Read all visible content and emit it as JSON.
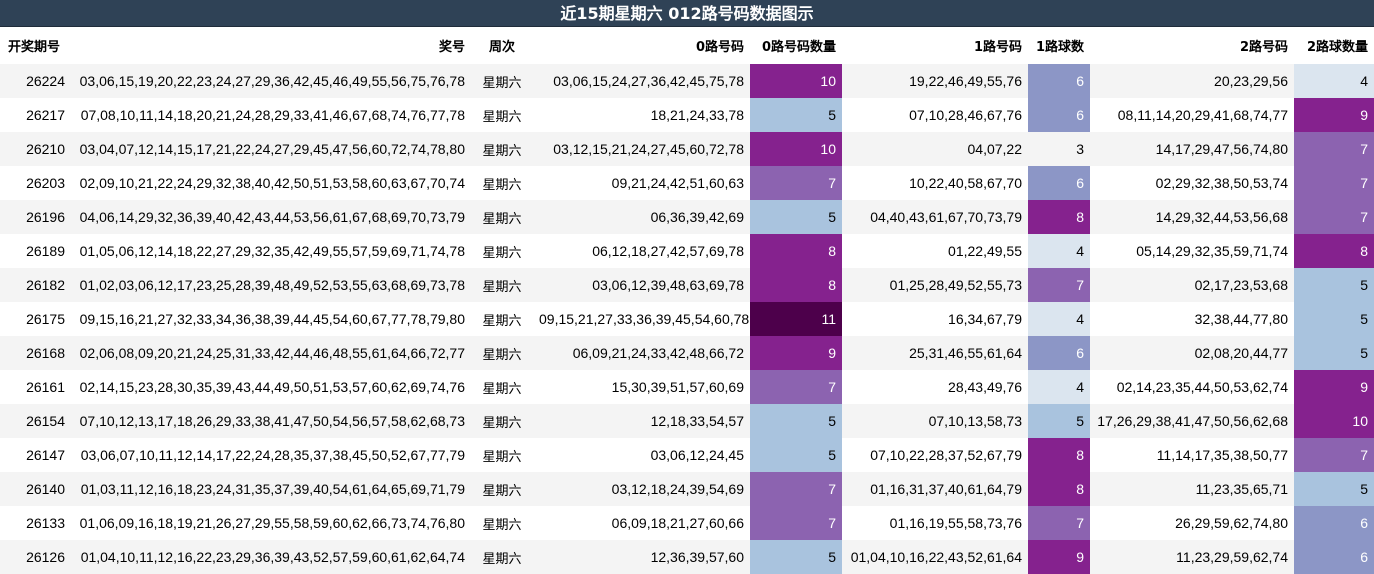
{
  "title": "近15期星期六 012路号码数据图示",
  "headers": [
    "开奖期号",
    "奖号",
    "周次",
    "0路号码",
    "0路号码数量",
    "1路号码",
    "1路球数",
    "2路号码",
    "2路球数量"
  ],
  "palette": {
    "4": {
      "bg": "#dbe5ef",
      "fg": "#000000"
    },
    "5": {
      "bg": "#a9c3de",
      "fg": "#000000"
    },
    "6": {
      "bg": "#8c96c6",
      "fg": "#ffffff"
    },
    "7": {
      "bg": "#8c63b0",
      "fg": "#ffffff"
    },
    "8": {
      "bg": "#85228e",
      "fg": "#ffffff"
    },
    "9": {
      "bg": "#85228e",
      "fg": "#ffffff"
    },
    "10": {
      "bg": "#85228e",
      "fg": "#ffffff"
    },
    "11": {
      "bg": "#4d004b",
      "fg": "#ffffff"
    }
  },
  "rows": [
    {
      "issue": "26224",
      "numbers": "03,06,15,19,20,22,23,24,27,29,36,42,45,46,49,55,56,75,76,78",
      "weekday": "星期六",
      "r0": "03,06,15,24,27,36,42,45,75,78",
      "r0n": "10",
      "r1": "19,22,46,49,55,76",
      "r1n": "6",
      "r2": "20,23,29,56",
      "r2n": "4"
    },
    {
      "issue": "26217",
      "numbers": "07,08,10,11,14,18,20,21,24,28,29,33,41,46,67,68,74,76,77,78",
      "weekday": "星期六",
      "r0": "18,21,24,33,78",
      "r0n": "5",
      "r1": "07,10,28,46,67,76",
      "r1n": "6",
      "r2": "08,11,14,20,29,41,68,74,77",
      "r2n": "9"
    },
    {
      "issue": "26210",
      "numbers": "03,04,07,12,14,15,17,21,22,24,27,29,45,47,56,60,72,74,78,80",
      "weekday": "星期六",
      "r0": "03,12,15,21,24,27,45,60,72,78",
      "r0n": "10",
      "r1": "04,07,22",
      "r1n": "3",
      "r2": "14,17,29,47,56,74,80",
      "r2n": "7"
    },
    {
      "issue": "26203",
      "numbers": "02,09,10,21,22,24,29,32,38,40,42,50,51,53,58,60,63,67,70,74",
      "weekday": "星期六",
      "r0": "09,21,24,42,51,60,63",
      "r0n": "7",
      "r1": "10,22,40,58,67,70",
      "r1n": "6",
      "r2": "02,29,32,38,50,53,74",
      "r2n": "7"
    },
    {
      "issue": "26196",
      "numbers": "04,06,14,29,32,36,39,40,42,43,44,53,56,61,67,68,69,70,73,79",
      "weekday": "星期六",
      "r0": "06,36,39,42,69",
      "r0n": "5",
      "r1": "04,40,43,61,67,70,73,79",
      "r1n": "8",
      "r2": "14,29,32,44,53,56,68",
      "r2n": "7"
    },
    {
      "issue": "26189",
      "numbers": "01,05,06,12,14,18,22,27,29,32,35,42,49,55,57,59,69,71,74,78",
      "weekday": "星期六",
      "r0": "06,12,18,27,42,57,69,78",
      "r0n": "8",
      "r1": "01,22,49,55",
      "r1n": "4",
      "r2": "05,14,29,32,35,59,71,74",
      "r2n": "8"
    },
    {
      "issue": "26182",
      "numbers": "01,02,03,06,12,17,23,25,28,39,48,49,52,53,55,63,68,69,73,78",
      "weekday": "星期六",
      "r0": "03,06,12,39,48,63,69,78",
      "r0n": "8",
      "r1": "01,25,28,49,52,55,73",
      "r1n": "7",
      "r2": "02,17,23,53,68",
      "r2n": "5"
    },
    {
      "issue": "26175",
      "numbers": "09,15,16,21,27,32,33,34,36,38,39,44,45,54,60,67,77,78,79,80",
      "weekday": "星期六",
      "r0": "09,15,21,27,33,36,39,45,54,60,78",
      "r0n": "11",
      "r1": "16,34,67,79",
      "r1n": "4",
      "r2": "32,38,44,77,80",
      "r2n": "5"
    },
    {
      "issue": "26168",
      "numbers": "02,06,08,09,20,21,24,25,31,33,42,44,46,48,55,61,64,66,72,77",
      "weekday": "星期六",
      "r0": "06,09,21,24,33,42,48,66,72",
      "r0n": "9",
      "r1": "25,31,46,55,61,64",
      "r1n": "6",
      "r2": "02,08,20,44,77",
      "r2n": "5"
    },
    {
      "issue": "26161",
      "numbers": "02,14,15,23,28,30,35,39,43,44,49,50,51,53,57,60,62,69,74,76",
      "weekday": "星期六",
      "r0": "15,30,39,51,57,60,69",
      "r0n": "7",
      "r1": "28,43,49,76",
      "r1n": "4",
      "r2": "02,14,23,35,44,50,53,62,74",
      "r2n": "9"
    },
    {
      "issue": "26154",
      "numbers": "07,10,12,13,17,18,26,29,33,38,41,47,50,54,56,57,58,62,68,73",
      "weekday": "星期六",
      "r0": "12,18,33,54,57",
      "r0n": "5",
      "r1": "07,10,13,58,73",
      "r1n": "5",
      "r2": "17,26,29,38,41,47,50,56,62,68",
      "r2n": "10"
    },
    {
      "issue": "26147",
      "numbers": "03,06,07,10,11,12,14,17,22,24,28,35,37,38,45,50,52,67,77,79",
      "weekday": "星期六",
      "r0": "03,06,12,24,45",
      "r0n": "5",
      "r1": "07,10,22,28,37,52,67,79",
      "r1n": "8",
      "r2": "11,14,17,35,38,50,77",
      "r2n": "7"
    },
    {
      "issue": "26140",
      "numbers": "01,03,11,12,16,18,23,24,31,35,37,39,40,54,61,64,65,69,71,79",
      "weekday": "星期六",
      "r0": "03,12,18,24,39,54,69",
      "r0n": "7",
      "r1": "01,16,31,37,40,61,64,79",
      "r1n": "8",
      "r2": "11,23,35,65,71",
      "r2n": "5"
    },
    {
      "issue": "26133",
      "numbers": "01,06,09,16,18,19,21,26,27,29,55,58,59,60,62,66,73,74,76,80",
      "weekday": "星期六",
      "r0": "06,09,18,21,27,60,66",
      "r0n": "7",
      "r1": "01,16,19,55,58,73,76",
      "r1n": "7",
      "r2": "26,29,59,62,74,80",
      "r2n": "6"
    },
    {
      "issue": "26126",
      "numbers": "01,04,10,11,12,16,22,23,29,36,39,43,52,57,59,60,61,62,64,74",
      "weekday": "星期六",
      "r0": "12,36,39,57,60",
      "r0n": "5",
      "r1": "01,04,10,16,22,43,52,61,64",
      "r1n": "9",
      "r2": "11,23,29,59,62,74",
      "r2n": "6"
    }
  ]
}
